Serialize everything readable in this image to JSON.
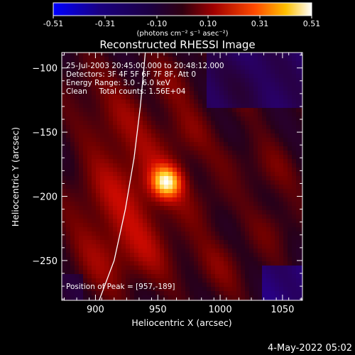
{
  "chart_data": {
    "type": "heatmap",
    "title": "Reconstructed RHESSI Image",
    "xlabel": "Heliocentric X (arcsec)",
    "ylabel": "Heliocentric Y (arcsec)",
    "xlim": [
      873,
      1066
    ],
    "ylim": [
      -281,
      -88
    ],
    "xticks": [
      900,
      950,
      1000,
      1050
    ],
    "yticks": [
      -100,
      -150,
      -200,
      -250
    ],
    "colorbar": {
      "min": -0.51,
      "max": 0.51,
      "ticks": [
        "-0.51",
        "-0.31",
        "-0.10",
        "0.10",
        "0.31",
        "0.51"
      ],
      "label": "(photons cm⁻² s⁻¹ asec⁻²)",
      "colormap": [
        "#0000ff",
        "#2a0060",
        "#160033",
        "#4a0000",
        "#c00000",
        "#ff5a00",
        "#ffff80",
        "#ffffff"
      ]
    },
    "annotations": [
      "25-Jul-2003 20:45:00.000 to 20:48:12.000",
      "Detectors: 3F 4F 5F 6F 7F 8F, Att 0",
      "Energy Range: 3.0 - 6.0 keV",
      "Clean     Total counts: 1.56E+04"
    ],
    "peak_label": "Position of Peak = [957,-189]",
    "peak": [
      957,
      -189
    ],
    "peak_value": 0.51,
    "limb_curve": [
      [
        903,
        -281
      ],
      [
        915,
        -250
      ],
      [
        924,
        -210
      ],
      [
        931,
        -170
      ],
      [
        936,
        -130
      ],
      [
        940,
        -88
      ]
    ]
  },
  "date_stamp": "4-May-2022 05:02"
}
